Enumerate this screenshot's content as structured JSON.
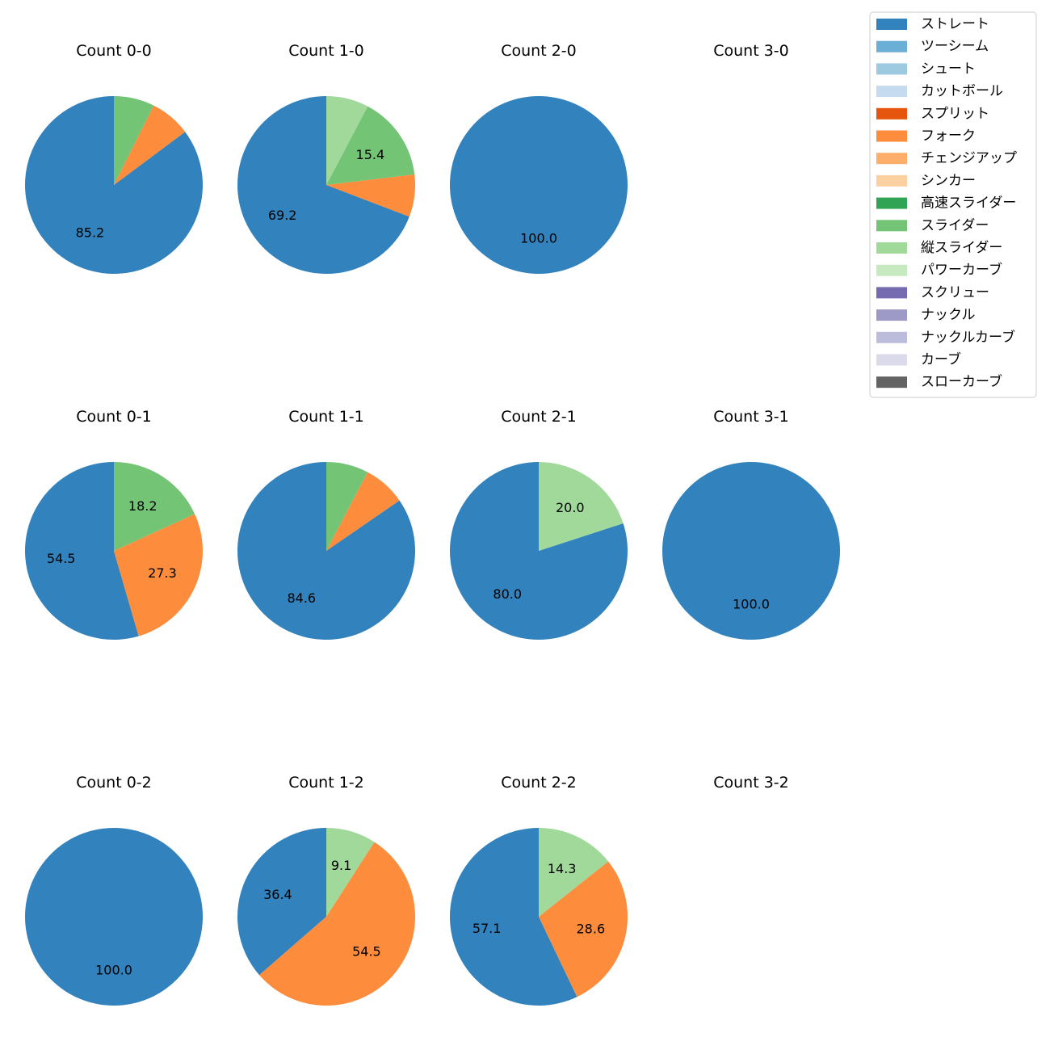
{
  "colors": {
    "ストレート": "#3182bd",
    "ツーシーム": "#6baed6",
    "シュート": "#9ecae1",
    "カットボール": "#c6dbef",
    "スプリット": "#e6550d",
    "フォーク": "#fd8d3c",
    "チェンジアップ": "#fdae6b",
    "シンカー": "#fdd0a2",
    "高速スライダー": "#31a354",
    "スライダー": "#74c476",
    "縦スライダー": "#a1d99b",
    "パワーカーブ": "#c7e9c0",
    "スクリュー": "#756bb1",
    "ナックル": "#9e9ac8",
    "ナックルカーブ": "#bcbddc",
    "カーブ": "#dadaeb",
    "スローカーブ": "#636363"
  },
  "chart_data": {
    "type": "pie",
    "legend_position": "top-right",
    "legend": [
      "ストレート",
      "ツーシーム",
      "シュート",
      "カットボール",
      "スプリット",
      "フォーク",
      "チェンジアップ",
      "シンカー",
      "高速スライダー",
      "スライダー",
      "縦スライダー",
      "パワーカーブ",
      "スクリュー",
      "ナックル",
      "ナックルカーブ",
      "カーブ",
      "スローカーブ"
    ],
    "pies": [
      {
        "title": "Count 0-0",
        "slices": [
          {
            "pitch": "ストレート",
            "value": 85.2,
            "label": "85.2"
          },
          {
            "pitch": "フォーク",
            "value": 7.4,
            "label": ""
          },
          {
            "pitch": "スライダー",
            "value": 7.4,
            "label": ""
          }
        ]
      },
      {
        "title": "Count 1-0",
        "slices": [
          {
            "pitch": "ストレート",
            "value": 69.2,
            "label": "69.2"
          },
          {
            "pitch": "フォーク",
            "value": 7.7,
            "label": ""
          },
          {
            "pitch": "スライダー",
            "value": 15.4,
            "label": "15.4"
          },
          {
            "pitch": "縦スライダー",
            "value": 7.7,
            "label": ""
          }
        ]
      },
      {
        "title": "Count 2-0",
        "slices": [
          {
            "pitch": "ストレート",
            "value": 100.0,
            "label": "100.0"
          }
        ]
      },
      {
        "title": "Count 3-0",
        "slices": []
      },
      {
        "title": "Count 0-1",
        "slices": [
          {
            "pitch": "ストレート",
            "value": 54.5,
            "label": "54.5"
          },
          {
            "pitch": "フォーク",
            "value": 27.3,
            "label": "27.3"
          },
          {
            "pitch": "スライダー",
            "value": 18.2,
            "label": "18.2"
          }
        ]
      },
      {
        "title": "Count 1-1",
        "slices": [
          {
            "pitch": "ストレート",
            "value": 84.6,
            "label": "84.6"
          },
          {
            "pitch": "フォーク",
            "value": 7.7,
            "label": ""
          },
          {
            "pitch": "スライダー",
            "value": 7.7,
            "label": ""
          }
        ]
      },
      {
        "title": "Count 2-1",
        "slices": [
          {
            "pitch": "ストレート",
            "value": 80.0,
            "label": "80.0"
          },
          {
            "pitch": "縦スライダー",
            "value": 20.0,
            "label": "20.0"
          }
        ]
      },
      {
        "title": "Count 3-1",
        "slices": [
          {
            "pitch": "ストレート",
            "value": 100.0,
            "label": "100.0"
          }
        ]
      },
      {
        "title": "Count 0-2",
        "slices": [
          {
            "pitch": "ストレート",
            "value": 100.0,
            "label": "100.0"
          }
        ]
      },
      {
        "title": "Count 1-2",
        "slices": [
          {
            "pitch": "ストレート",
            "value": 36.4,
            "label": "36.4"
          },
          {
            "pitch": "フォーク",
            "value": 54.5,
            "label": "54.5"
          },
          {
            "pitch": "縦スライダー",
            "value": 9.1,
            "label": "9.1"
          }
        ]
      },
      {
        "title": "Count 2-2",
        "slices": [
          {
            "pitch": "ストレート",
            "value": 57.1,
            "label": "57.1"
          },
          {
            "pitch": "フォーク",
            "value": 28.6,
            "label": "28.6"
          },
          {
            "pitch": "縦スライダー",
            "value": 14.3,
            "label": "14.3"
          }
        ]
      },
      {
        "title": "Count 3-2",
        "slices": []
      }
    ]
  }
}
